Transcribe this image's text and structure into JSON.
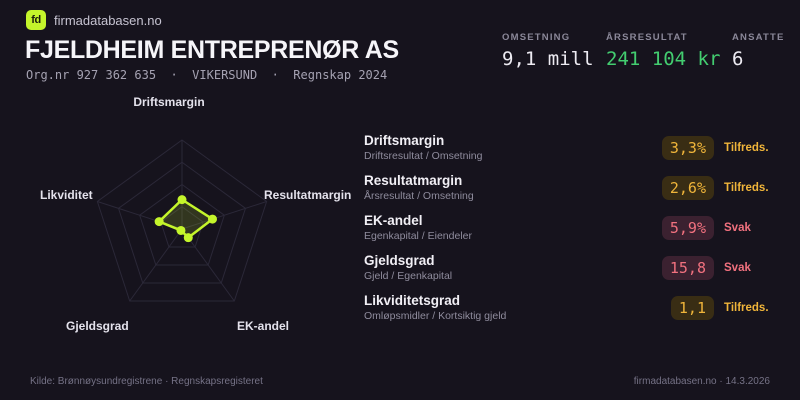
{
  "brand": {
    "logo_text": "fd",
    "name": "firmadatabasen.no"
  },
  "header": {
    "title": "FJELDHEIM ENTREPRENØR AS",
    "subtitle": "Org.nr 927 362 635  ·  VIKERSUND  ·  Regnskap 2024"
  },
  "stats": [
    {
      "label": "OMSETNING",
      "value": "9,1 mill"
    },
    {
      "label": "ÅRSRESULTAT",
      "value": "241 104 kr"
    },
    {
      "label": "ANSATTE",
      "value": "6"
    }
  ],
  "metrics": [
    {
      "name": "Driftsmargin",
      "formula": "Driftsresultat / Omsetning",
      "value": "3,3%",
      "status": "Tilfreds.",
      "tone": "ok"
    },
    {
      "name": "Resultatmargin",
      "formula": "Årsresultat / Omsetning",
      "value": "2,6%",
      "status": "Tilfreds.",
      "tone": "ok"
    },
    {
      "name": "EK-andel",
      "formula": "Egenkapital / Eiendeler",
      "value": "5,9%",
      "status": "Svak",
      "tone": "weak"
    },
    {
      "name": "Gjeldsgrad",
      "formula": "Gjeld / Egenkapital",
      "value": "15,8",
      "status": "Svak",
      "tone": "weak"
    },
    {
      "name": "Likviditetsgrad",
      "formula": "Omløpsmidler / Kortsiktig gjeld",
      "value": "1,1",
      "status": "Tilfreds.",
      "tone": "ok"
    }
  ],
  "chart_data": {
    "type": "radar",
    "axes": [
      "Driftsmargin",
      "Resultatmargin",
      "EK-andel",
      "Gjeldsgrad",
      "Likviditet"
    ],
    "values_normalized": [
      0.33,
      0.36,
      0.12,
      0.02,
      0.27
    ],
    "axis_metric_values": [
      "3,3%",
      "2,6%",
      "5,9%",
      "15,8",
      "1,1"
    ],
    "rings": [
      0.25,
      0.5,
      0.75,
      1
    ],
    "grid_color": "#2b2838",
    "stroke_color": "#c4f52b",
    "fill_color": "#c4f52b",
    "fill_opacity": 0.16,
    "legend": "none"
  },
  "footer": {
    "source": "Kilde: Brønnøysundregistrene · Regnskapsregisteret",
    "attribution": "firmadatabasen.no · 14.3.2026"
  },
  "colors": {
    "background": "#16131d",
    "accent_lime": "#c4f52b",
    "positive_green": "#43cd70",
    "warn_yellow": "#f0b53a",
    "weak_red": "#f2717f"
  }
}
